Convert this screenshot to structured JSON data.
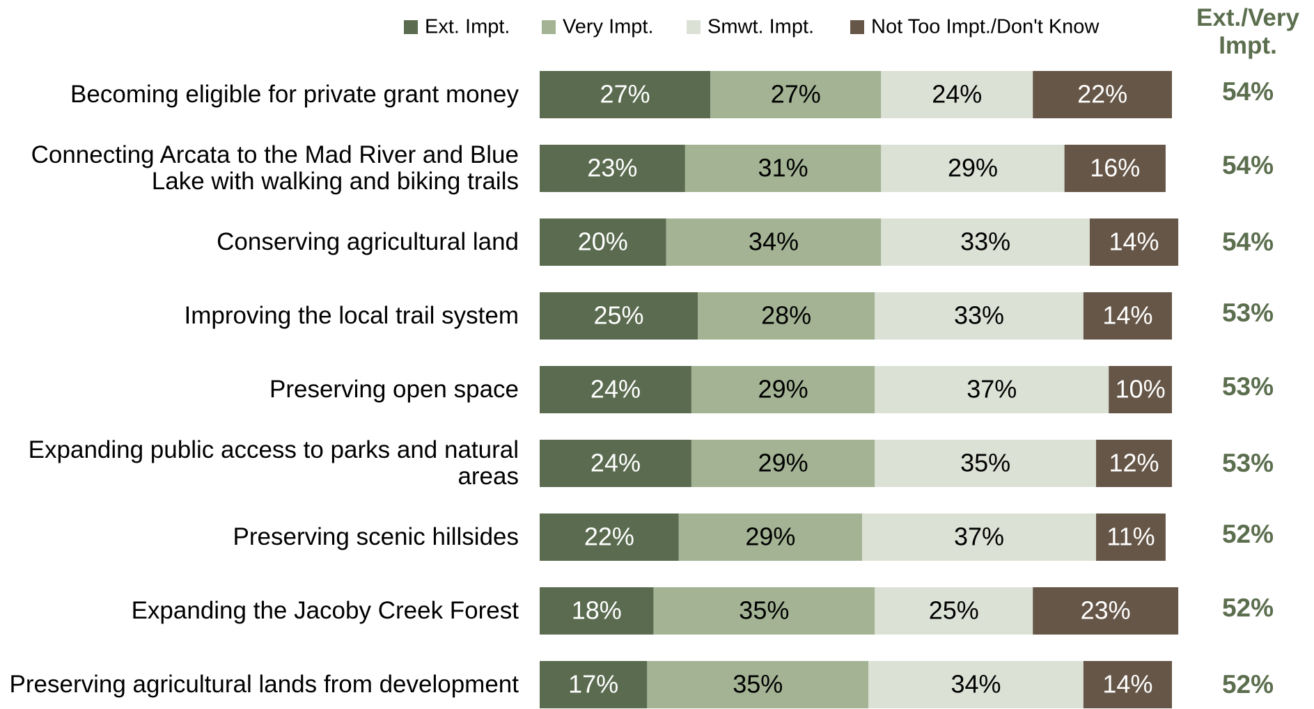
{
  "chart_data": {
    "type": "stacked_bar_horizontal",
    "categories": [
      "Becoming eligible for private grant money",
      "Connecting Arcata to the Mad River and Blue Lake with walking and biking trails",
      "Conserving agricultural land",
      "Improving the local trail system",
      "Preserving open space",
      "Expanding public access to parks and natural areas",
      "Preserving scenic hillsides",
      "Expanding the Jacoby Creek Forest",
      "Preserving agricultural lands from development"
    ],
    "series": [
      {
        "name": "Ext. Impt.",
        "color": "#5a6b4f",
        "values": [
          27,
          23,
          20,
          25,
          24,
          24,
          22,
          18,
          17
        ],
        "value_labels": [
          "27%",
          "23%",
          "20%",
          "25%",
          "24%",
          "24%",
          "22%",
          "18%",
          "17%"
        ]
      },
      {
        "name": "Very Impt.",
        "color": "#a3b394",
        "values": [
          27,
          31,
          34,
          28,
          29,
          29,
          29,
          35,
          35
        ],
        "value_labels": [
          "27%",
          "31%",
          "34%",
          "28%",
          "29%",
          "29%",
          "29%",
          "35%",
          "35%"
        ]
      },
      {
        "name": "Smwt. Impt.",
        "color": "#dce1d6",
        "values": [
          24,
          29,
          33,
          33,
          37,
          35,
          37,
          25,
          34
        ],
        "value_labels": [
          "24%",
          "29%",
          "33%",
          "33%",
          "37%",
          "35%",
          "37%",
          "25%",
          "34%"
        ]
      },
      {
        "name": "Not Too Impt./Don't Know",
        "color": "#665647",
        "values": [
          22,
          16,
          14,
          14,
          10,
          12,
          11,
          23,
          14
        ],
        "value_labels": [
          "22%",
          "16%",
          "14%",
          "14%",
          "10%",
          "12%",
          "11%",
          "23%",
          "14%"
        ]
      }
    ],
    "totals": {
      "title": "Ext./Very Impt.",
      "color": "#5b6e4e",
      "values": [
        54,
        54,
        54,
        53,
        53,
        53,
        52,
        52,
        52
      ],
      "value_labels": [
        "54%",
        "54%",
        "54%",
        "53%",
        "53%",
        "53%",
        "52%",
        "52%",
        "52%"
      ]
    }
  }
}
